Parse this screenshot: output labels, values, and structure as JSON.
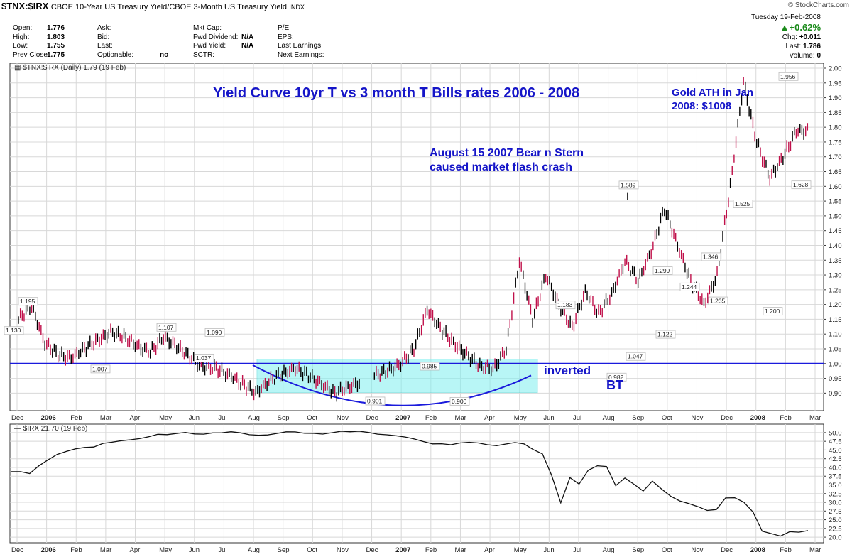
{
  "header": {
    "symbol": "$TNX:$IRX",
    "description": "CBOE 10-Year US Treasury Yield/CBOE 3-Month US Treasury Yield",
    "exchange": "INDX",
    "brand": "© StockCharts.com",
    "date": "Tuesday 19-Feb-2008",
    "change_pct": "+0.62%",
    "change_label": "Chg:",
    "change_val": "+0.011",
    "last_label": "Last:",
    "last_val": "1.786",
    "volume_label": "Volume:",
    "volume_val": "0"
  },
  "quote_fields": [
    [
      {
        "k": "Open:",
        "v": "1.776"
      },
      {
        "k": "Ask:",
        "v": ""
      },
      {
        "k": "Mkt Cap:",
        "v": ""
      },
      {
        "k": "P/E:",
        "v": ""
      }
    ],
    [
      {
        "k": "High:",
        "v": "1.803"
      },
      {
        "k": "Bid:",
        "v": ""
      },
      {
        "k": "Fwd Dividend:",
        "v": "N/A"
      },
      {
        "k": "EPS:",
        "v": ""
      }
    ],
    [
      {
        "k": "Low:",
        "v": "1.755"
      },
      {
        "k": "Last:",
        "v": ""
      },
      {
        "k": "Fwd Yield:",
        "v": "N/A"
      },
      {
        "k": "Last Earnings:",
        "v": ""
      }
    ],
    [
      {
        "k": "Prev Close:",
        "v": "1.775"
      },
      {
        "k": "Optionable:",
        "v": "no"
      },
      {
        "k": "SCTR:",
        "v": ""
      },
      {
        "k": "Next Earnings:",
        "v": ""
      }
    ]
  ],
  "annotations": {
    "title": "Yield Curve 10yr T vs 3 month T Bills rates 2006 - 2008",
    "gold_line1": "Gold ATH in Jan",
    "gold_line2": "2008: $1008",
    "bear_line1": "August 15 2007 Bear n Stern",
    "bear_line2": "caused market flash crash",
    "inverted": "inverted",
    "bt": "BT"
  },
  "colors": {
    "annotation": "#1515c8",
    "box_fill": "#7ff0f0",
    "up": "#000000",
    "down": "#c0104a",
    "line": "#1a1adc"
  },
  "chart_data": [
    {
      "type": "line",
      "panel_label": "$TNX:$IRX (Daily) 1.79 (19 Feb)",
      "title": "Yield Curve 10yr T vs 3 month T Bills rates 2006 - 2008",
      "x_ticks": [
        "Dec",
        "2006",
        "Feb",
        "Mar",
        "Apr",
        "May",
        "Jun",
        "Jul",
        "Aug",
        "Sep",
        "Oct",
        "Nov",
        "Dec",
        "2007",
        "Feb",
        "Mar",
        "Apr",
        "May",
        "Jun",
        "Jul",
        "Aug",
        "Sep",
        "Oct",
        "Nov",
        "Dec",
        "2008",
        "Feb",
        "Mar"
      ],
      "ylim": [
        0.86,
        2.0
      ],
      "y_ticks": [
        "0.90",
        "0.95",
        "1.00",
        "1.05",
        "1.10",
        "1.15",
        "1.20",
        "1.25",
        "1.30",
        "1.35",
        "1.40",
        "1.45",
        "1.50",
        "1.55",
        "1.60",
        "1.65",
        "1.70",
        "1.75",
        "1.80",
        "1.85",
        "1.90",
        "1.95",
        "2.00"
      ],
      "grid": true,
      "reference_line": 1.0,
      "series": [
        {
          "x": [
            0,
            1,
            2,
            3,
            4,
            5,
            6,
            7,
            8,
            9,
            10,
            11,
            12,
            13,
            14,
            15,
            16,
            17,
            18,
            19,
            20,
            21,
            22,
            23,
            24,
            25,
            26
          ],
          "values": [
            1.15,
            1.195,
            1.07,
            1.03,
            1.02,
            1.05,
            1.08,
            1.107,
            1.09,
            1.06,
            1.037,
            1.09,
            1.06,
            1.02,
            0.99,
            0.985,
            0.96,
            0.93,
            0.901,
            0.94,
            0.965,
            0.985,
            0.96,
            0.93,
            0.9,
            0.92,
            0.94
          ]
        },
        {
          "x": [
            27,
            28,
            29,
            30,
            31,
            32,
            33,
            34,
            35,
            36,
            37,
            38,
            39,
            40,
            41,
            42,
            43,
            44,
            45,
            46,
            47,
            48,
            49,
            50,
            51,
            52,
            53,
            54,
            55,
            56,
            57,
            58,
            59,
            60
          ],
          "values": [
            0.96,
            0.975,
            1.0,
            1.05,
            1.183,
            1.12,
            1.07,
            1.03,
            0.99,
            0.982,
            1.047,
            1.35,
            1.15,
            1.299,
            1.2,
            1.122,
            1.244,
            1.17,
            1.235,
            1.346,
            1.28,
            1.38,
            1.525,
            1.4,
            1.28,
            1.2,
            1.3,
            1.6,
            1.956,
            1.75,
            1.628,
            1.7,
            1.786,
            1.79
          ]
        }
      ],
      "point_labels": [
        {
          "text": "1.195",
          "value": 1.195
        },
        {
          "text": "1.130",
          "value": 1.13
        },
        {
          "text": "1.007",
          "value": 1.007
        },
        {
          "text": "1.107",
          "value": 1.107
        },
        {
          "text": "1.090",
          "value": 1.09
        },
        {
          "text": "1.037",
          "value": 1.037
        },
        {
          "text": "0.901",
          "value": 0.901
        },
        {
          "text": "0.985",
          "value": 0.985
        },
        {
          "text": "0.900",
          "value": 0.9
        },
        {
          "text": "1.183",
          "value": 1.183
        },
        {
          "text": "0.982",
          "value": 0.982
        },
        {
          "text": "1.589",
          "value": 1.589
        },
        {
          "text": "1.047",
          "value": 1.047
        },
        {
          "text": "1.299",
          "value": 1.299
        },
        {
          "text": "1.122",
          "value": 1.122
        },
        {
          "text": "1.244",
          "value": 1.244
        },
        {
          "text": "1.346",
          "value": 1.346
        },
        {
          "text": "1.235",
          "value": 1.235
        },
        {
          "text": "1.525",
          "value": 1.525
        },
        {
          "text": "1.200",
          "value": 1.2
        },
        {
          "text": "1.956",
          "value": 1.956
        },
        {
          "text": "1.628",
          "value": 1.628
        }
      ]
    },
    {
      "type": "line",
      "panel_label": "$IRX 21.70 (19 Feb)",
      "ylim": [
        19.0,
        51.0
      ],
      "y_ticks": [
        "20.0",
        "22.5",
        "25.0",
        "27.5",
        "30.0",
        "32.5",
        "35.0",
        "37.5",
        "40.0",
        "42.5",
        "45.0",
        "47.5",
        "50.0"
      ],
      "grid": true,
      "x_ticks": [
        "Dec",
        "2006",
        "Feb",
        "Mar",
        "Apr",
        "May",
        "Jun",
        "Jul",
        "Aug",
        "Sep",
        "Oct",
        "Nov",
        "Dec",
        "2007",
        "Feb",
        "Mar",
        "Apr",
        "May",
        "Jun",
        "Jul",
        "Aug",
        "Sep",
        "Oct",
        "Nov",
        "Dec",
        "2008",
        "Feb",
        "Mar"
      ],
      "series": [
        {
          "values": [
            38.8,
            39.0,
            38.5,
            40.5,
            42.0,
            43.5,
            44.5,
            45.5,
            46.0,
            46.0,
            46.8,
            47.0,
            47.5,
            48.0,
            48.5,
            49.0,
            49.5,
            49.2,
            49.5,
            50.0,
            49.8,
            49.8,
            50.0,
            49.8,
            50.0,
            49.8,
            49.5,
            49.5,
            49.5,
            49.7,
            50.0,
            50.0,
            49.8,
            50.0,
            49.8,
            50.0,
            50.2,
            50.0,
            50.3,
            50.2,
            49.8,
            49.5,
            49.0,
            48.5,
            48.0,
            47.5,
            47.0,
            47.0,
            46.5,
            46.8,
            47.0,
            47.0,
            46.7,
            46.5,
            46.8,
            47.0,
            46.5,
            45.0,
            44.0,
            38.0,
            30.0,
            37.0,
            35.0,
            39.0,
            40.5,
            40.5,
            35.0,
            37.0,
            35.0,
            33.0,
            36.0,
            34.0,
            32.0,
            30.5,
            29.5,
            28.5,
            27.5,
            28.0,
            31.5,
            31.5,
            30.0,
            27.0,
            21.5,
            21.0,
            20.5,
            21.8,
            21.5,
            21.7
          ]
        }
      ]
    }
  ]
}
